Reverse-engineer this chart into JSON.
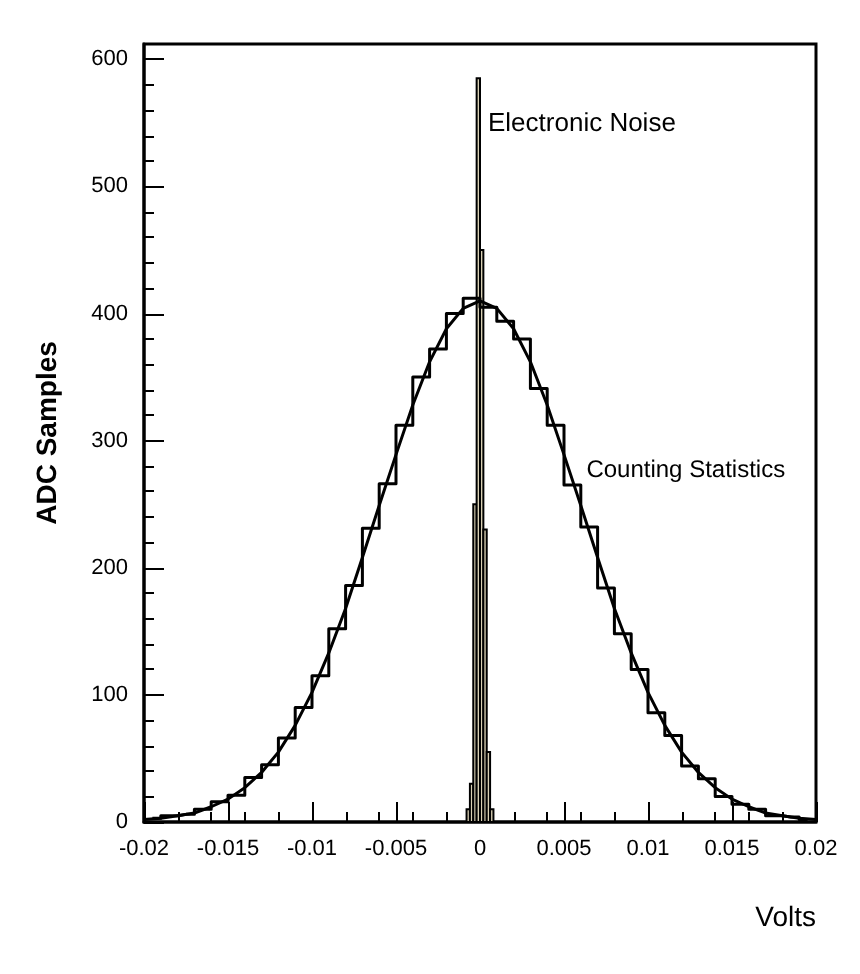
{
  "chart_data": {
    "type": "histogram",
    "xlabel": "Volts",
    "ylabel": "ADC Samples",
    "xlim": [
      -0.02,
      0.02
    ],
    "xticks": [
      -0.02,
      -0.015,
      -0.01,
      -0.005,
      0,
      0.005,
      0.01,
      0.015,
      0.02
    ],
    "ylim": [
      0,
      612
    ],
    "yticks": [
      0,
      100,
      200,
      300,
      400,
      500,
      600
    ],
    "grid": false,
    "series": [
      {
        "type": "step",
        "name": "Counting Statistics",
        "color": "#000000",
        "x": [
          -0.0195,
          -0.0185,
          -0.0175,
          -0.0165,
          -0.0155,
          -0.0145,
          -0.0135,
          -0.0125,
          -0.0115,
          -0.0105,
          -0.0095,
          -0.0085,
          -0.0075,
          -0.0065,
          -0.0055,
          -0.0045,
          -0.0035,
          -0.0025,
          -0.0015,
          -0.0005,
          0.0005,
          0.0015,
          0.0025,
          0.0035,
          0.0045,
          0.0055,
          0.0065,
          0.0075,
          0.0085,
          0.0095,
          0.0105,
          0.0115,
          0.0125,
          0.0135,
          0.0145,
          0.0155,
          0.0165,
          0.0175,
          0.0185,
          0.0195
        ],
        "values": [
          3,
          5,
          6,
          10,
          16,
          21,
          35,
          45,
          66,
          90,
          115,
          152,
          186,
          231,
          266,
          312,
          350,
          372,
          400,
          412,
          405,
          394,
          380,
          341,
          312,
          265,
          232,
          184,
          148,
          120,
          86,
          68,
          44,
          34,
          20,
          14,
          10,
          5,
          4,
          2
        ]
      },
      {
        "type": "line",
        "color": "#000000",
        "x": [
          -0.02,
          -0.019,
          -0.018,
          -0.017,
          -0.016,
          -0.015,
          -0.014,
          -0.013,
          -0.012,
          -0.011,
          -0.01,
          -0.009,
          -0.008,
          -0.007,
          -0.006,
          -0.005,
          -0.004,
          -0.003,
          -0.002,
          -0.001,
          0,
          0.001,
          0.002,
          0.003,
          0.004,
          0.005,
          0.006,
          0.007,
          0.008,
          0.009,
          0.01,
          0.011,
          0.012,
          0.013,
          0.014,
          0.015,
          0.016,
          0.017,
          0.018,
          0.019,
          0.02
        ],
        "values": [
          2,
          3,
          5,
          7,
          12,
          18,
          27,
          39,
          55,
          76,
          102,
          133,
          168,
          208,
          249,
          289,
          328,
          362,
          388,
          404,
          410,
          404,
          388,
          362,
          328,
          289,
          249,
          208,
          168,
          133,
          102,
          76,
          55,
          39,
          27,
          18,
          12,
          7,
          5,
          3,
          2
        ]
      },
      {
        "color": "#d9d0b4",
        "bins": [
          -0.0008,
          -0.0006,
          -0.0004,
          -0.0002,
          0,
          0.0002,
          0.0004,
          0.0006,
          0.0008
        ],
        "values": [
          10,
          30,
          250,
          585,
          450,
          230,
          55,
          10
        ]
      }
    ],
    "annotations": [
      {
        "text": "Electronic Noise",
        "x": 0,
        "y": 585
      }
    ]
  }
}
